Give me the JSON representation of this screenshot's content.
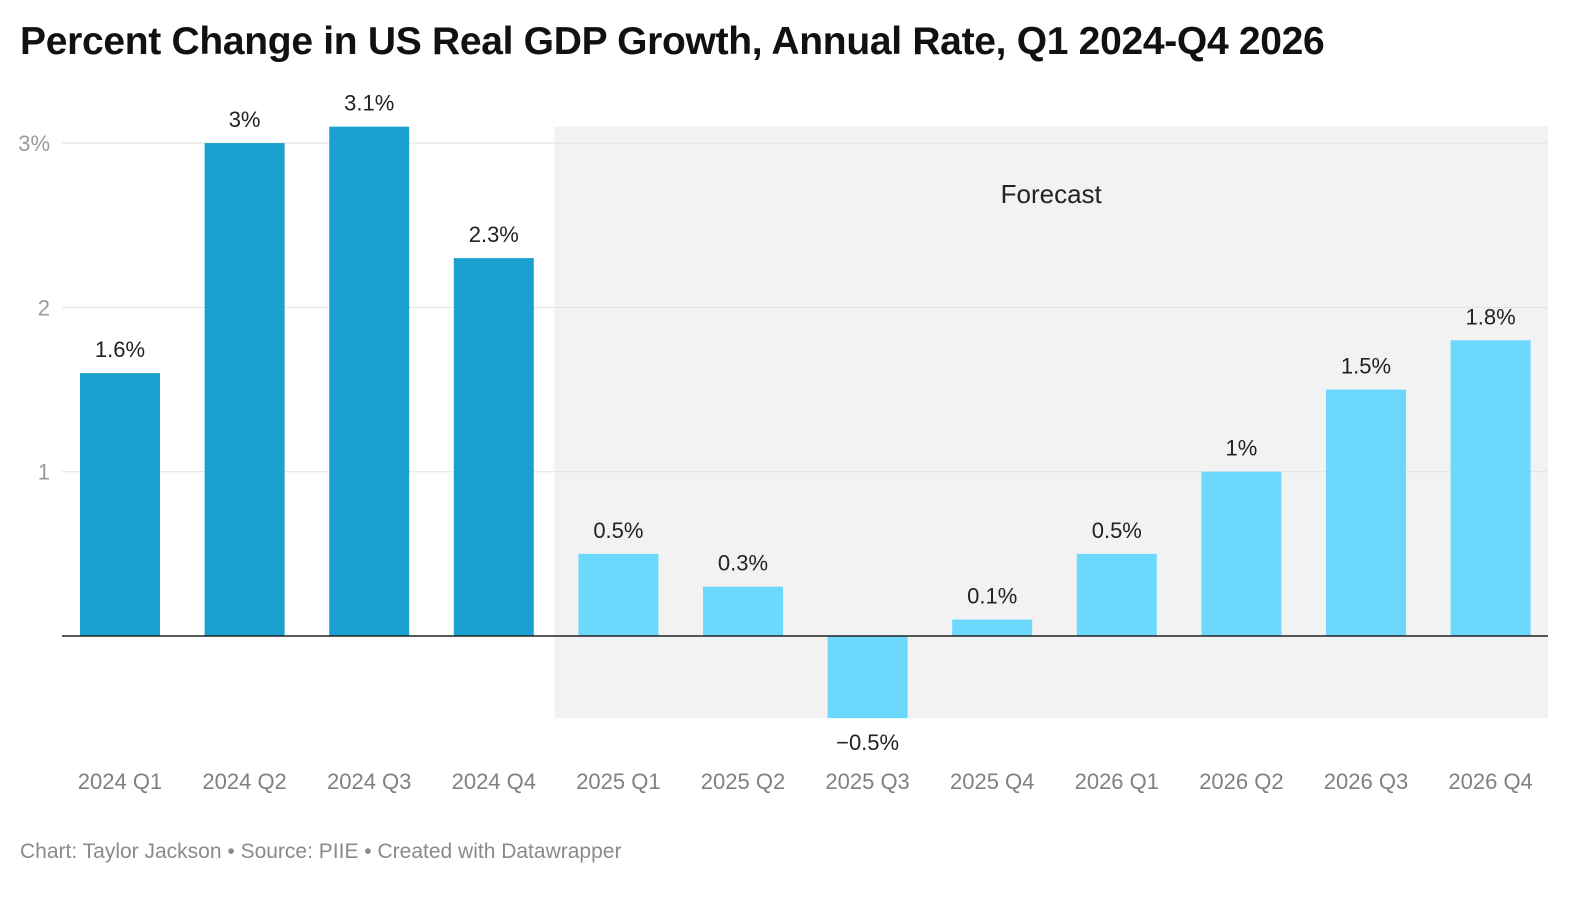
{
  "title": "Percent Change in US Real GDP Growth, Annual Rate, Q1 2024-Q4 2026",
  "footer": {
    "author": "Chart: Taylor Jackson",
    "source": "Source: PIIE",
    "tool": "Created with Datawrapper",
    "separator": " • "
  },
  "chart_data": {
    "type": "bar",
    "title": "Percent Change in US Real GDP Growth, Annual Rate, Q1 2024-Q4 2026",
    "xlabel": "",
    "ylabel": "",
    "categories": [
      "2024 Q1",
      "2024 Q2",
      "2024 Q3",
      "2024 Q4",
      "2025 Q1",
      "2025 Q2",
      "2025 Q3",
      "2025 Q4",
      "2026 Q1",
      "2026 Q2",
      "2026 Q3",
      "2026 Q4"
    ],
    "values": [
      1.6,
      3,
      3.1,
      2.3,
      0.5,
      0.3,
      -0.5,
      0.1,
      0.5,
      1,
      1.5,
      1.8
    ],
    "value_labels": [
      "1.6%",
      "3%",
      "3.1%",
      "2.3%",
      "0.5%",
      "0.3%",
      "−0.5%",
      "0.1%",
      "0.5%",
      "1%",
      "1.5%",
      "1.8%"
    ],
    "ylim": [
      -0.5,
      3.1
    ],
    "yticks": [
      1,
      2,
      3
    ],
    "ytick_labels": [
      "1",
      "2",
      "3%"
    ],
    "grid": true,
    "forecast_start_index": 4,
    "forecast_label": "Forecast",
    "colors": {
      "actual": "#1aa1cf",
      "forecast": "#6cd9fc",
      "forecast_band": "#f2f2f2",
      "gridline": "#e2e2e2",
      "baseline": "#222222"
    }
  }
}
